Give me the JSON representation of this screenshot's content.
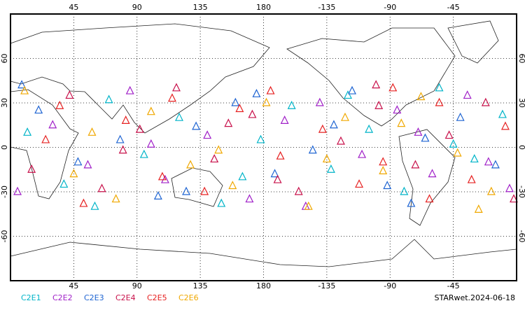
{
  "chart_data": {
    "type": "scatter",
    "footer": "STARwet.2024-06-18",
    "xlim": [
      0,
      360
    ],
    "ylim": [
      -90,
      90
    ],
    "xticks": [
      45,
      90,
      135,
      180,
      {
        "value": 225,
        "label": "-135"
      },
      {
        "value": 270,
        "label": "-90"
      },
      {
        "value": 315,
        "label": "-45"
      }
    ],
    "yticks": [
      -60,
      -30,
      0,
      30,
      60
    ],
    "grid": true,
    "marker": "triangle",
    "series": [
      {
        "name": "C2E1",
        "color": "#00b4c8",
        "x": [
          12,
          38,
          70,
          95,
          120,
          150,
          178,
          200,
          228,
          255,
          280,
          305,
          330,
          350,
          60,
          165,
          240,
          315
        ],
        "values": [
          10,
          -25,
          32,
          -5,
          20,
          -38,
          5,
          28,
          -15,
          12,
          -30,
          40,
          -8,
          22,
          -40,
          -20,
          35,
          2
        ]
      },
      {
        "name": "C2E2",
        "color": "#a020c8",
        "x": [
          5,
          30,
          55,
          85,
          110,
          140,
          170,
          195,
          220,
          250,
          275,
          300,
          325,
          355,
          100,
          210,
          290,
          340
        ],
        "values": [
          -30,
          15,
          -12,
          38,
          -22,
          8,
          -35,
          18,
          30,
          -5,
          25,
          -18,
          35,
          -28,
          2,
          -40,
          10,
          -10
        ]
      },
      {
        "name": "C2E3",
        "color": "#1e64d2",
        "x": [
          20,
          48,
          78,
          105,
          132,
          160,
          188,
          215,
          243,
          268,
          295,
          320,
          345,
          8,
          125,
          230,
          285,
          175
        ],
        "values": [
          25,
          -10,
          5,
          -33,
          14,
          30,
          -18,
          -2,
          38,
          -26,
          6,
          20,
          -12,
          42,
          -30,
          15,
          -38,
          36
        ]
      },
      {
        "name": "C2E4",
        "color": "#c8104a",
        "x": [
          15,
          42,
          65,
          92,
          118,
          145,
          172,
          205,
          235,
          262,
          288,
          312,
          338,
          358,
          80,
          190,
          260,
          155
        ],
        "values": [
          -15,
          35,
          -28,
          12,
          40,
          -8,
          22,
          -30,
          4,
          28,
          -12,
          8,
          30,
          -35,
          -2,
          -22,
          42,
          16
        ]
      },
      {
        "name": "C2E5",
        "color": "#e62020",
        "x": [
          25,
          52,
          82,
          108,
          138,
          163,
          192,
          222,
          248,
          272,
          298,
          328,
          352,
          35,
          115,
          185,
          265,
          305
        ],
        "values": [
          5,
          -38,
          18,
          -20,
          -30,
          26,
          -6,
          12,
          -25,
          40,
          -35,
          -22,
          14,
          28,
          33,
          38,
          -10,
          30
        ]
      },
      {
        "name": "C2E6",
        "color": "#f0a800",
        "x": [
          10,
          45,
          75,
          100,
          128,
          158,
          182,
          212,
          238,
          265,
          292,
          318,
          342,
          58,
          148,
          225,
          278,
          333
        ],
        "values": [
          38,
          -18,
          -35,
          24,
          -12,
          -26,
          30,
          -40,
          20,
          -16,
          34,
          -4,
          -30,
          10,
          -2,
          -8,
          16,
          -42
        ]
      }
    ]
  }
}
